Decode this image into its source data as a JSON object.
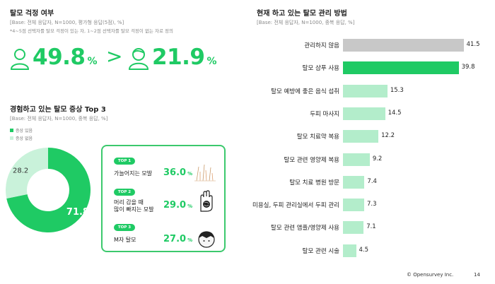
{
  "left_top": {
    "title": "탈모 걱정 여부",
    "base": "[Base: 전체 응답자, N=1000, 평가형 응답(5점), %]",
    "note": "*4~5점 선택자를 탈모 걱정이 있는 자, 1~2점 선택자를 탈모 걱정이 없는 자로 정의",
    "worried_value": "49.8",
    "not_worried_value": "21.9",
    "percent_sign": "%",
    "compare_sign": ">"
  },
  "symptoms": {
    "title": "경험하고 있는 탈모 증상 Top 3",
    "base": "[Base: 전체 응답자, N=1000, 중복 응답, %]",
    "legend": [
      {
        "label": "증상 있음",
        "color": "#1fca64"
      },
      {
        "label": "증상 없음",
        "color": "#c9f2da"
      }
    ],
    "top": [
      {
        "rank": "TOP 1",
        "label": "가늘어지는 모발",
        "value": "36.0",
        "unit": "%"
      },
      {
        "rank": "TOP 2",
        "label": "머리 감을 때\n많이 빠지는 모발",
        "value": "29.0",
        "unit": "%"
      },
      {
        "rank": "TOP 3",
        "label": "M자 탈모",
        "value": "27.0",
        "unit": "%"
      }
    ]
  },
  "right": {
    "title": "현재 하고 있는 탈모 관리 방법",
    "base": "[Base: 전체 응답자, N=1000, 중복 응답, %]"
  },
  "chart_data": [
    {
      "type": "pie",
      "categories": [
        "증상 있음",
        "증상 없음"
      ],
      "values": [
        71.8,
        28.2
      ],
      "colors": [
        "#1fca64",
        "#c9f2da"
      ]
    },
    {
      "type": "bar",
      "orientation": "horizontal",
      "categories": [
        "관리하지 않음",
        "탈모 샴푸 사용",
        "탈모 예방에 좋은 음식 섭취",
        "두피 마사지",
        "탈모 치료약 복용",
        "탈모 관련 영양제 복용",
        "탈모 치료 병원 방문",
        "미용실, 두피 관리실에서 두피 관리",
        "탈모 관련 앰플/영양제 사용",
        "탈모 관련 시술"
      ],
      "values": [
        41.5,
        39.8,
        15.3,
        14.5,
        12.2,
        9.2,
        7.4,
        7.3,
        7.1,
        4.5
      ],
      "colors": [
        "#c8c8c8",
        "#1fca64",
        "#b3edcb",
        "#b3edcb",
        "#b3edcb",
        "#b3edcb",
        "#b3edcb",
        "#b3edcb",
        "#b3edcb",
        "#b3edcb"
      ],
      "xlim": [
        0,
        45
      ]
    }
  ],
  "footer": {
    "company": "© Opensurvey Inc.",
    "page": "14"
  }
}
